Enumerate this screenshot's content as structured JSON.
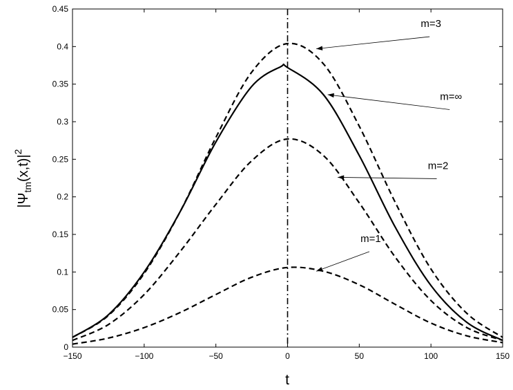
{
  "chart_data": {
    "type": "line",
    "title": "",
    "xlabel": "t",
    "ylabel": "|Ψ",
    "ylabel_sub": "tm",
    "ylabel_rest": "(x,t)|",
    "ylabel_sup": "2",
    "xlim": [
      -150,
      150
    ],
    "ylim": [
      0,
      0.45
    ],
    "xticks": [
      -150,
      -100,
      -50,
      0,
      50,
      100,
      150
    ],
    "xtick_labels": [
      "−150",
      "−100",
      "−50",
      "0",
      "50",
      "100",
      "150"
    ],
    "yticks": [
      0,
      0.05,
      0.1,
      0.15,
      0.2,
      0.25,
      0.3,
      0.35,
      0.4,
      0.45
    ],
    "ytick_labels": [
      "0",
      "0.05",
      "0.1",
      "0.15",
      "0.2",
      "0.25",
      "0.3",
      "0.35",
      "0.4",
      "0.45"
    ],
    "grid": false,
    "legend": "none",
    "vertical_line": {
      "x": 0,
      "style": "dash-dot"
    },
    "series": [
      {
        "name": "m=1",
        "style": "dashed",
        "x": [
          -150,
          -125,
          -100,
          -75,
          -50,
          -25,
          0,
          25,
          50,
          75,
          100,
          125,
          150
        ],
        "y": [
          0.004,
          0.012,
          0.026,
          0.046,
          0.07,
          0.093,
          0.106,
          0.101,
          0.083,
          0.057,
          0.032,
          0.015,
          0.006
        ]
      },
      {
        "name": "m=2",
        "style": "dashed",
        "x": [
          -150,
          -125,
          -100,
          -75,
          -50,
          -25,
          0,
          25,
          50,
          75,
          100,
          125,
          150
        ],
        "y": [
          0.009,
          0.03,
          0.07,
          0.127,
          0.19,
          0.248,
          0.277,
          0.255,
          0.192,
          0.12,
          0.062,
          0.026,
          0.009
        ]
      },
      {
        "name": "m=3",
        "style": "dashed",
        "x": [
          -150,
          -125,
          -100,
          -75,
          -50,
          -25,
          0,
          25,
          50,
          75,
          100,
          125,
          150
        ],
        "y": [
          0.013,
          0.042,
          0.098,
          0.18,
          0.279,
          0.366,
          0.404,
          0.377,
          0.294,
          0.193,
          0.104,
          0.045,
          0.013
        ]
      },
      {
        "name": "m=∞",
        "style": "solid",
        "x": [
          -150,
          -125,
          -100,
          -75,
          -50,
          -25,
          -5,
          0,
          25,
          50,
          75,
          100,
          125,
          150
        ],
        "y": [
          0.013,
          0.043,
          0.1,
          0.18,
          0.273,
          0.347,
          0.373,
          0.372,
          0.336,
          0.255,
          0.16,
          0.082,
          0.033,
          0.009
        ]
      }
    ],
    "annotations": [
      {
        "text": "m=3",
        "target": [
          20,
          0.397
        ],
        "label_at": [
          100,
          0.426
        ]
      },
      {
        "text": "m=∞",
        "target": [
          28,
          0.336
        ],
        "label_at": [
          114,
          0.329
        ]
      },
      {
        "text": "m=2",
        "target": [
          35,
          0.226
        ],
        "label_at": [
          105,
          0.237
        ]
      },
      {
        "text": "m=1",
        "target": [
          20,
          0.101
        ],
        "label_at": [
          58,
          0.14
        ]
      }
    ]
  }
}
